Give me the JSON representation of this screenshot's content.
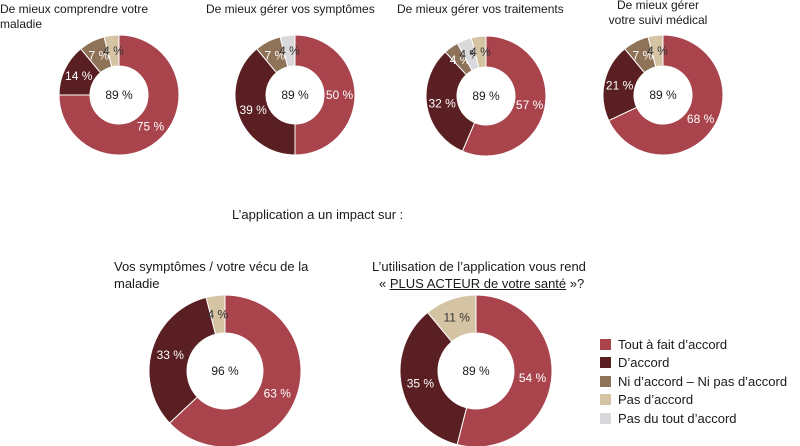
{
  "colors": {
    "tout_a_fait": "#a9434c",
    "d_accord": "#5a1f22",
    "ni_ni": "#8f7358",
    "pas_accord": "#d5c4a4",
    "pas_du_tout": "#d9d8db"
  },
  "section_title": "L’application a un impact sur :",
  "chart_data": [
    {
      "type": "pie",
      "title": "De mieux comprendre votre maladie",
      "center_label": "89 %",
      "series": [
        {
          "name": "Tout à fait d’accord",
          "value": 75,
          "label": "75 %"
        },
        {
          "name": "D’accord",
          "value": 14,
          "label": "14 %"
        },
        {
          "name": "Ni d’accord – Ni pas d’accord",
          "value": 7,
          "label": "7 %"
        },
        {
          "name": "Pas d’accord",
          "value": 4,
          "label": "4 %"
        }
      ]
    },
    {
      "type": "pie",
      "title": "De mieux gérer vos symptômes",
      "center_label": "89 %",
      "series": [
        {
          "name": "Tout à fait d’accord",
          "value": 50,
          "label": "50 %"
        },
        {
          "name": "D’accord",
          "value": 39,
          "label": "39 %"
        },
        {
          "name": "Ni d’accord – Ni pas d’accord",
          "value": 7,
          "label": "7 %"
        },
        {
          "name": "Pas du tout d’accord",
          "value": 4,
          "label": "4 %"
        }
      ]
    },
    {
      "type": "pie",
      "title": "De mieux gérer vos traitements",
      "center_label": "89 %",
      "series": [
        {
          "name": "Tout à fait d’accord",
          "value": 57,
          "label": "57 %"
        },
        {
          "name": "D’accord",
          "value": 32,
          "label": "32 %"
        },
        {
          "name": "Ni d’accord – Ni pas d’accord",
          "value": 4,
          "label": "4 %"
        },
        {
          "name": "Pas du tout d’accord",
          "value": 4,
          "label": "4 %"
        },
        {
          "name": "Pas d’accord",
          "value": 4,
          "label": "4 %"
        }
      ]
    },
    {
      "type": "pie",
      "title": "De mieux gérer votre suivi médical",
      "center_label": "89 %",
      "series": [
        {
          "name": "Tout à fait d’accord",
          "value": 68,
          "label": "68 %"
        },
        {
          "name": "D’accord",
          "value": 21,
          "label": "21 %"
        },
        {
          "name": "Ni d’accord – Ni pas d’accord",
          "value": 7,
          "label": "7 %"
        },
        {
          "name": "Pas d’accord",
          "value": 4,
          "label": "4 %"
        }
      ]
    },
    {
      "type": "pie",
      "title": "Vos symptômes / votre vécu de la maladie",
      "center_label": "96 %",
      "series": [
        {
          "name": "Tout à fait d’accord",
          "value": 63,
          "label": "63 %"
        },
        {
          "name": "D’accord",
          "value": 33,
          "label": "33 %"
        },
        {
          "name": "Pas d’accord",
          "value": 4,
          "label": "4 %"
        }
      ]
    },
    {
      "type": "pie",
      "title_line1": "L’utilisation de l’application vous rend",
      "title_line2": "PLUS ACTEUR de votre santé",
      "center_label": "89 %",
      "series": [
        {
          "name": "Tout à fait d’accord",
          "value": 54,
          "label": "54 %"
        },
        {
          "name": "D’accord",
          "value": 35,
          "label": "35 %"
        },
        {
          "name": "Pas d’accord",
          "value": 11,
          "label": "11 %"
        }
      ]
    }
  ],
  "legend": [
    {
      "label": "Tout à fait d’accord",
      "color": "#a9434c"
    },
    {
      "label": "D’accord",
      "color": "#5a1f22"
    },
    {
      "label": "Ni d’accord  – Ni pas d’accord",
      "color": "#8f7358"
    },
    {
      "label": "Pas d’accord",
      "color": "#d5c4a4"
    },
    {
      "label": "Pas du tout d’accord",
      "color": "#d9d8db"
    }
  ]
}
